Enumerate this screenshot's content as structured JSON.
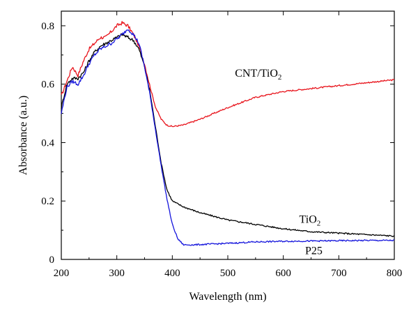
{
  "chart_data": {
    "type": "line",
    "xlabel": "Wavelength (nm)",
    "ylabel": "Absorbance (a.u.)",
    "xlim": [
      200,
      800
    ],
    "ylim": [
      0,
      0.85
    ],
    "xticks": [
      200,
      300,
      400,
      500,
      600,
      700,
      800
    ],
    "yticks": [
      0,
      0.2,
      0.4,
      0.6,
      0.8
    ],
    "grid": false,
    "legend": "none",
    "series": [
      {
        "color": "#e8141c",
        "x": [
          200,
          210,
          220,
          230,
          240,
          250,
          260,
          270,
          280,
          290,
          300,
          310,
          320,
          330,
          340,
          350,
          360,
          370,
          380,
          390,
          400,
          420,
          450,
          500,
          550,
          600,
          650,
          700,
          750,
          800
        ],
        "y": [
          0.56,
          0.61,
          0.66,
          0.63,
          0.68,
          0.72,
          0.74,
          0.76,
          0.76,
          0.78,
          0.8,
          0.81,
          0.8,
          0.77,
          0.73,
          0.67,
          0.59,
          0.52,
          0.48,
          0.46,
          0.455,
          0.46,
          0.48,
          0.52,
          0.555,
          0.575,
          0.585,
          0.595,
          0.605,
          0.615
        ]
      },
      {
        "color": "#000000",
        "x": [
          200,
          210,
          220,
          230,
          240,
          250,
          260,
          270,
          280,
          290,
          300,
          310,
          320,
          330,
          340,
          350,
          360,
          370,
          380,
          390,
          400,
          420,
          450,
          500,
          550,
          600,
          650,
          700,
          750,
          800
        ],
        "y": [
          0.52,
          0.6,
          0.62,
          0.62,
          0.64,
          0.68,
          0.71,
          0.73,
          0.74,
          0.75,
          0.76,
          0.77,
          0.76,
          0.75,
          0.72,
          0.66,
          0.57,
          0.45,
          0.33,
          0.24,
          0.2,
          0.18,
          0.16,
          0.135,
          0.12,
          0.105,
          0.095,
          0.09,
          0.085,
          0.08
        ]
      },
      {
        "color": "#1414dc",
        "x": [
          200,
          210,
          220,
          230,
          240,
          250,
          260,
          270,
          280,
          290,
          300,
          310,
          320,
          330,
          340,
          350,
          360,
          370,
          380,
          390,
          400,
          410,
          420,
          440,
          500,
          550,
          600,
          650,
          700,
          750,
          800
        ],
        "y": [
          0.5,
          0.59,
          0.61,
          0.6,
          0.63,
          0.67,
          0.7,
          0.72,
          0.73,
          0.74,
          0.755,
          0.77,
          0.79,
          0.77,
          0.74,
          0.66,
          0.56,
          0.44,
          0.32,
          0.21,
          0.12,
          0.07,
          0.05,
          0.05,
          0.055,
          0.06,
          0.062,
          0.063,
          0.064,
          0.065,
          0.065
        ]
      }
    ],
    "annotations": [
      {
        "text": "CNT/TiO",
        "sub": "2",
        "x": 555,
        "y": 0.625
      },
      {
        "text": "TiO",
        "sub": "2",
        "x": 648,
        "y": 0.125
      },
      {
        "text": "P25",
        "x": 655,
        "y": 0.018
      }
    ]
  }
}
